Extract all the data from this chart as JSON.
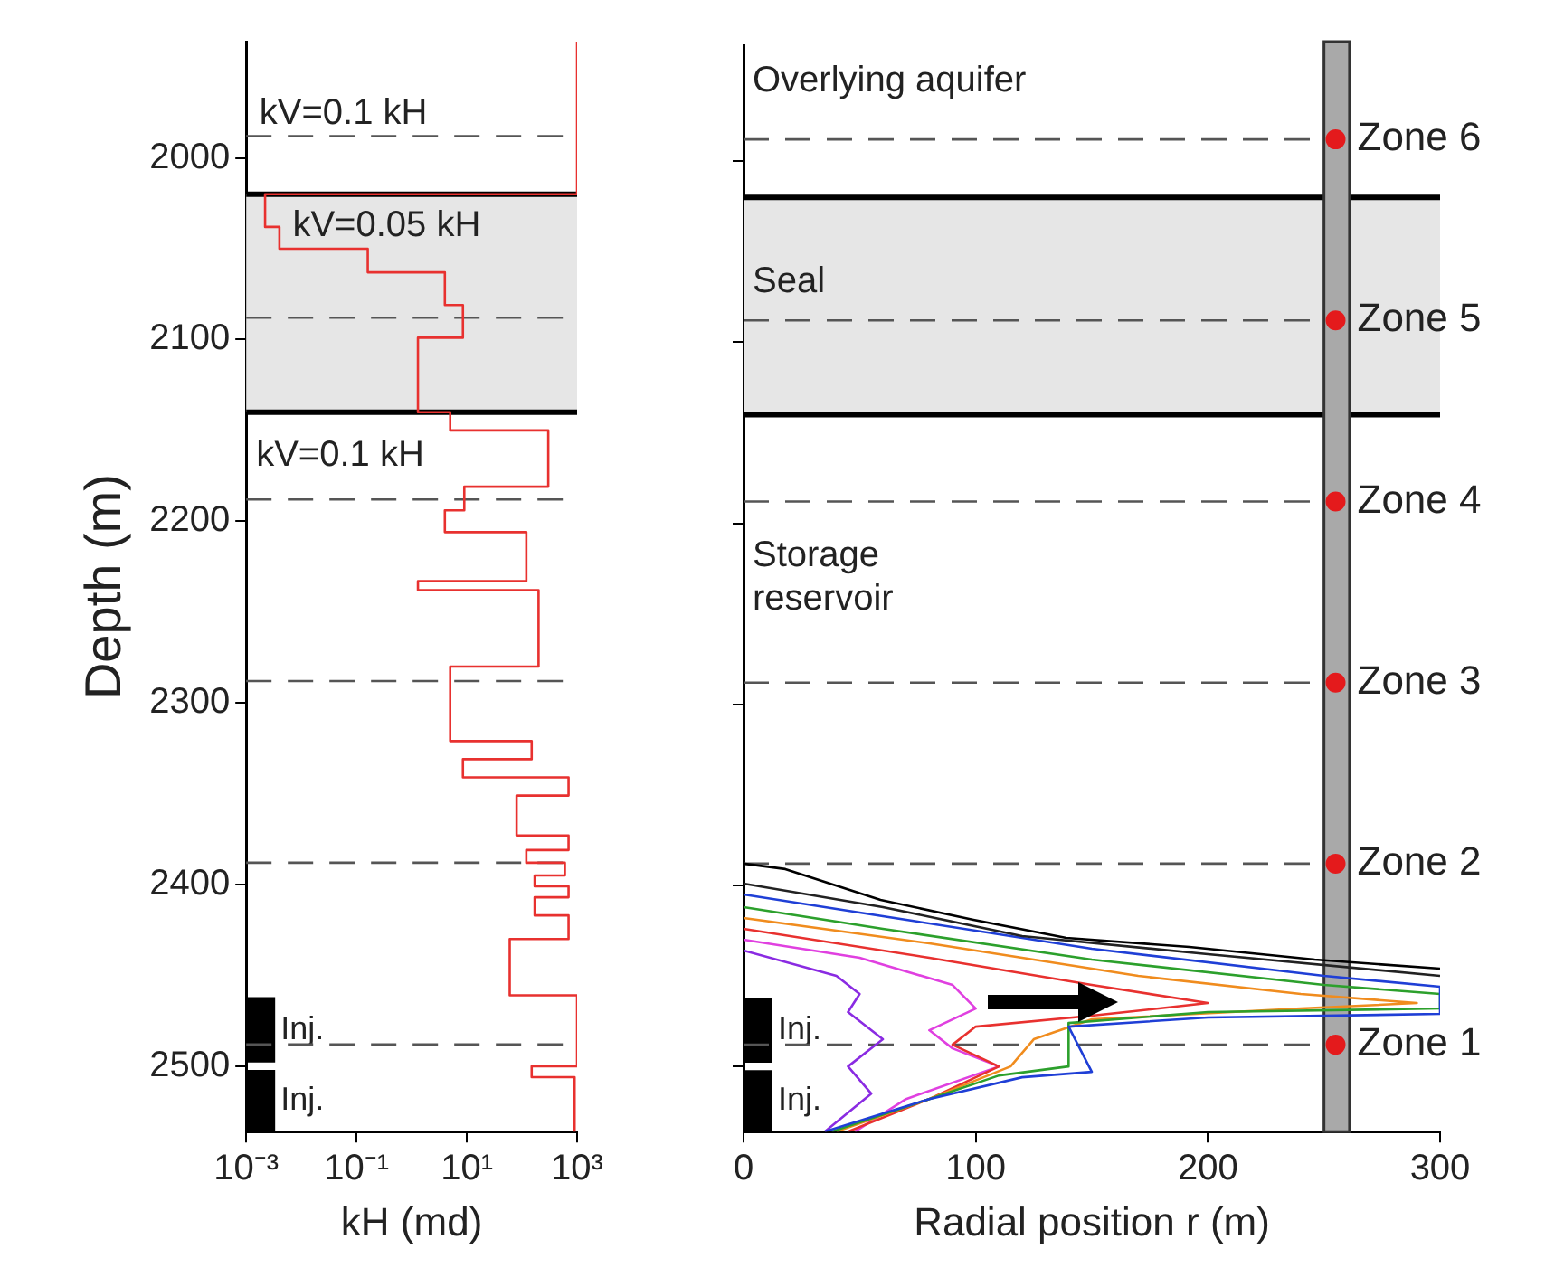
{
  "chart_data": [
    {
      "type": "line",
      "xlabel": "kH (md)",
      "ylabel": "Depth (m)",
      "log": "x",
      "xlim": [
        0.001,
        1000
      ],
      "xticks": [
        {
          "value": 0.001,
          "label": "10⁻³"
        },
        {
          "value": 0.1,
          "label": "10⁻¹"
        },
        {
          "value": 10,
          "label": "10¹"
        },
        {
          "value": 1000,
          "label": "10³"
        }
      ],
      "ylim": [
        2536,
        1936
      ],
      "yticks": [
        2000,
        2100,
        2200,
        2300,
        2400,
        2500
      ],
      "grid": false,
      "legend": false,
      "series": [
        {
          "type": "line",
          "color": "#e8312f",
          "x": [
            1000,
            1000,
            0.0022,
            0.0022,
            0.004,
            0.004,
            0.16,
            0.16,
            4,
            4,
            8.5,
            8.5,
            1.3,
            1.3,
            5,
            5,
            300,
            300,
            9,
            9,
            4,
            4,
            120,
            120,
            1.3,
            1.3,
            200,
            200,
            5,
            5,
            150,
            150,
            8.5,
            8.5,
            700,
            700,
            80,
            80,
            700,
            700,
            120,
            120,
            600,
            600,
            170,
            170,
            700,
            700,
            170,
            170,
            700,
            700,
            60,
            60,
            1000,
            1000,
            150,
            150,
            900,
            900
          ],
          "values": [
            1936,
            2020,
            2020,
            2038,
            2038,
            2050,
            2050,
            2063,
            2063,
            2081,
            2081,
            2099,
            2099,
            2140,
            2140,
            2150,
            2150,
            2181,
            2181,
            2194,
            2194,
            2206,
            2206,
            2233,
            2233,
            2238,
            2238,
            2280,
            2280,
            2321,
            2321,
            2331,
            2331,
            2341,
            2341,
            2351,
            2351,
            2373,
            2373,
            2381,
            2381,
            2388,
            2388,
            2395,
            2395,
            2401,
            2401,
            2407,
            2407,
            2417,
            2417,
            2430,
            2430,
            2461,
            2461,
            2500,
            2500,
            2506,
            2506,
            2536
          ]
        }
      ],
      "bands": [
        {
          "axis": "y",
          "from": 2020,
          "to": 2140,
          "color": "#e6e6e6"
        },
        {
          "axis": "y",
          "from": 2462,
          "to": 2498,
          "label": "Inj.",
          "color": "#000000"
        },
        {
          "axis": "y",
          "from": 2502,
          "to": 2536,
          "label": "Inj.",
          "color": "#000000"
        }
      ],
      "ref_lines": [
        {
          "axis": "y",
          "value": 2020,
          "color": "#000000",
          "line_style": "solid"
        },
        {
          "axis": "y",
          "value": 2140,
          "color": "#000000",
          "line_style": "solid"
        },
        {
          "axis": "y",
          "value": 1988,
          "color": "#555555",
          "line_style": "dashed"
        },
        {
          "axis": "y",
          "value": 2088,
          "color": "#555555",
          "line_style": "dashed"
        },
        {
          "axis": "y",
          "value": 2188,
          "color": "#555555",
          "line_style": "dashed"
        },
        {
          "axis": "y",
          "value": 2288,
          "color": "#555555",
          "line_style": "dashed"
        },
        {
          "axis": "y",
          "value": 2388,
          "color": "#555555",
          "line_style": "dashed"
        },
        {
          "axis": "y",
          "value": 2488,
          "color": "#555555",
          "line_style": "dashed"
        }
      ],
      "annotations": [
        "kV=0.1 kH",
        "kV=0.05 kH",
        "kV=0.1 kH"
      ]
    },
    {
      "type": "line",
      "xlabel": "Radial position r (m)",
      "xlim": [
        0,
        300
      ],
      "xticks": [
        0,
        100,
        200,
        300
      ],
      "ylim": [
        2536,
        1936
      ],
      "yticks": [
        2000,
        2100,
        2200,
        2300,
        2400,
        2500
      ],
      "tick_labels": "x",
      "grid": false,
      "legend": false,
      "series": [
        {
          "type": "line",
          "color": "#000000",
          "x": [
            0,
            18,
            59,
            99,
            139,
            192,
            246,
            300
          ],
          "values": [
            2388,
            2391,
            2408,
            2419,
            2429,
            2434,
            2441,
            2446
          ]
        },
        {
          "type": "line",
          "color": "#222222",
          "x": [
            0,
            60,
            120,
            200,
            300
          ],
          "values": [
            2399,
            2412,
            2428,
            2438,
            2450
          ]
        },
        {
          "type": "line",
          "color": "#1f3fd6",
          "x": [
            0,
            60,
            150,
            250,
            300,
            300,
            200,
            140,
            150,
            120,
            80,
            35
          ],
          "values": [
            2405,
            2417,
            2435,
            2450,
            2456,
            2471,
            2473,
            2478,
            2503,
            2506,
            2518,
            2536
          ]
        },
        {
          "type": "line",
          "color": "#2ca02c",
          "x": [
            0,
            60,
            150,
            250,
            300,
            300,
            200,
            140,
            140,
            110,
            80,
            38
          ],
          "values": [
            2412,
            2424,
            2441,
            2455,
            2460,
            2468,
            2470,
            2476,
            2500,
            2505,
            2518,
            2536
          ]
        },
        {
          "type": "line",
          "color": "#f08c1e",
          "x": [
            0,
            80,
            170,
            240,
            290,
            240,
            150,
            125,
            115,
            80,
            40
          ],
          "values": [
            2418,
            2432,
            2450,
            2460,
            2465,
            2468,
            2474,
            2485,
            2500,
            2518,
            2536
          ]
        },
        {
          "type": "line",
          "color": "#e8312f",
          "x": [
            0,
            80,
            150,
            200,
            150,
            100,
            90,
            110,
            80,
            45
          ],
          "values": [
            2424,
            2440,
            2455,
            2465,
            2472,
            2478,
            2488,
            2500,
            2518,
            2536
          ]
        },
        {
          "type": "line",
          "color": "#e040e0",
          "x": [
            0,
            50,
            90,
            100,
            80,
            90,
            110,
            70,
            48
          ],
          "values": [
            2430,
            2440,
            2455,
            2468,
            2480,
            2490,
            2500,
            2518,
            2536
          ]
        },
        {
          "type": "line",
          "color": "#8a2be2",
          "x": [
            0,
            40,
            50,
            45,
            60,
            45,
            55,
            35
          ],
          "values": [
            2436,
            2450,
            2460,
            2470,
            2485,
            2500,
            2515,
            2536
          ]
        },
        {
          "type": "scatter",
          "color": "#e41a1c",
          "marker": "circle",
          "x": [
            255,
            255,
            255,
            255,
            255,
            255
          ],
          "values": [
            1988,
            2088,
            2188,
            2288,
            2388,
            2488
          ],
          "value_labels": [
            "Zone 6",
            "Zone 5",
            "Zone 4",
            "Zone 3",
            "Zone 2",
            "Zone 1"
          ]
        }
      ],
      "bands": [
        {
          "axis": "y",
          "from": 2020,
          "to": 2140,
          "color": "#e6e6e6"
        },
        {
          "axis": "x",
          "from": 250,
          "to": 261,
          "color": "#a9a9a9"
        },
        {
          "axis": "y",
          "from": 2462,
          "to": 2498,
          "label": "Inj.",
          "color": "#000000"
        },
        {
          "axis": "y",
          "from": 2502,
          "to": 2536,
          "label": "Inj.",
          "color": "#000000"
        }
      ],
      "ref_lines": [
        {
          "axis": "y",
          "value": 2020,
          "color": "#000000",
          "line_style": "solid"
        },
        {
          "axis": "y",
          "value": 2140,
          "color": "#000000",
          "line_style": "solid"
        },
        {
          "axis": "y",
          "value": 1988,
          "color": "#555555",
          "line_style": "dashed"
        },
        {
          "axis": "y",
          "value": 2088,
          "color": "#555555",
          "line_style": "dashed"
        },
        {
          "axis": "y",
          "value": 2188,
          "color": "#555555",
          "line_style": "dashed"
        },
        {
          "axis": "y",
          "value": 2288,
          "color": "#555555",
          "line_style": "dashed"
        },
        {
          "axis": "y",
          "value": 2388,
          "color": "#555555",
          "line_style": "dashed"
        },
        {
          "axis": "y",
          "value": 2488,
          "color": "#555555",
          "line_style": "dashed"
        }
      ],
      "annotations": [
        "Overlying aquifer",
        "Seal",
        "Storage\nreservoir"
      ]
    }
  ]
}
